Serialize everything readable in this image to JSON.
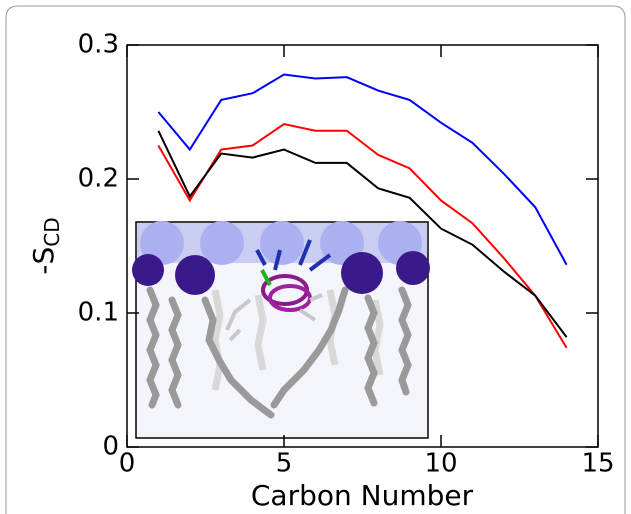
{
  "chart_data": {
    "type": "line",
    "xlabel": "Carbon Number",
    "ylabel": {
      "text": "-S",
      "subscript": "CD"
    },
    "x": [
      1,
      2,
      3,
      4,
      5,
      6,
      7,
      8,
      9,
      10,
      11,
      12,
      13,
      14
    ],
    "series": [
      {
        "color": "#0000ff",
        "values": [
          0.25,
          0.222,
          0.259,
          0.264,
          0.278,
          0.275,
          0.276,
          0.266,
          0.259,
          0.242,
          0.227,
          0.204,
          0.179,
          0.136
        ]
      },
      {
        "color": "#ff0000",
        "values": [
          0.225,
          0.184,
          0.222,
          0.225,
          0.241,
          0.236,
          0.236,
          0.218,
          0.208,
          0.184,
          0.167,
          0.141,
          0.113,
          0.074
        ]
      },
      {
        "color": "#000000",
        "values": [
          0.236,
          0.187,
          0.219,
          0.216,
          0.222,
          0.212,
          0.212,
          0.193,
          0.186,
          0.163,
          0.151,
          0.131,
          0.113,
          0.082
        ]
      }
    ],
    "xlim": [
      0,
      15
    ],
    "xticks": [
      0,
      5,
      10,
      15
    ],
    "ylim": [
      0,
      0.3
    ],
    "yticks": [
      0,
      0.1,
      0.2,
      0.3
    ]
  }
}
